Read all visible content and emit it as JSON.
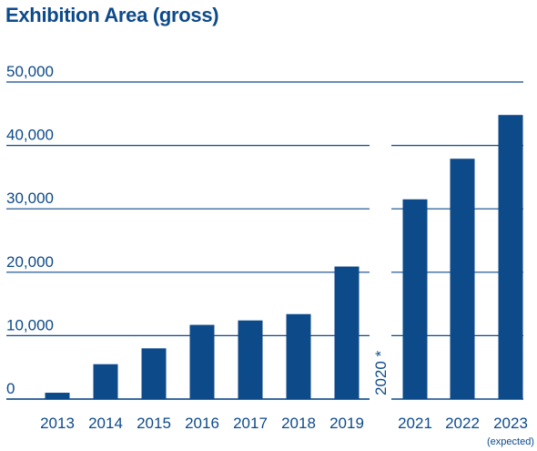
{
  "chart_data": {
    "type": "bar",
    "title": "Exhibition Area (gross)",
    "xlabel": "",
    "ylabel": "",
    "ylim": [
      0,
      50000
    ],
    "y_ticks": [
      "0",
      "10,000",
      "20,000",
      "30,000",
      "40,000",
      "50,000"
    ],
    "categories": [
      "2013",
      "2014",
      "2015",
      "2016",
      "2017",
      "2018",
      "2019",
      "2021",
      "2022",
      "2023"
    ],
    "values": [
      1000,
      5500,
      8000,
      11700,
      12400,
      13400,
      20900,
      31500,
      37900,
      44800
    ],
    "gap_label": "2020 *",
    "notes": {
      "2023": "(expected)"
    },
    "grid": true,
    "bar_color": "#0d4a8a",
    "text_color": "#0d4a8a"
  }
}
